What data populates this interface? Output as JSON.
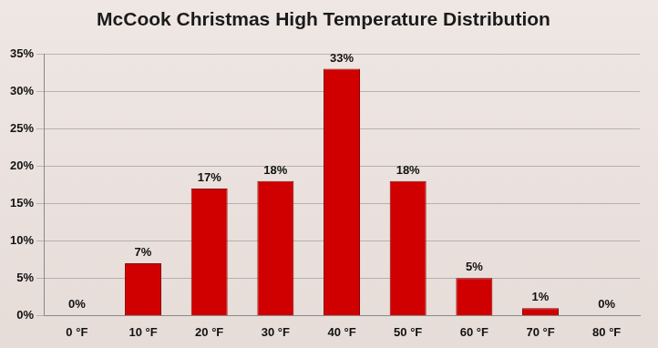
{
  "chart_data": {
    "type": "bar",
    "title": "McCook Christmas High Temperature Distribution",
    "categories": [
      "0 °F",
      "10 °F",
      "20 °F",
      "30 °F",
      "40 °F",
      "50 °F",
      "60 °F",
      "70 °F",
      "80 °F"
    ],
    "values": [
      0,
      7,
      17,
      18,
      33,
      18,
      5,
      1,
      0
    ],
    "value_labels": [
      "0%",
      "7%",
      "17%",
      "18%",
      "33%",
      "18%",
      "5%",
      "1%",
      "0%"
    ],
    "color": "#d00000",
    "ylim": [
      0,
      35
    ],
    "yticks": [
      {
        "value": 0,
        "label": "0%"
      },
      {
        "value": 5,
        "label": "5%"
      },
      {
        "value": 10,
        "label": "10%"
      },
      {
        "value": 15,
        "label": "15%"
      },
      {
        "value": 20,
        "label": "20%"
      },
      {
        "value": 25,
        "label": "25%"
      },
      {
        "value": 30,
        "label": "30%"
      },
      {
        "value": 35,
        "label": "35%"
      }
    ],
    "grid": true,
    "data_labels": true
  }
}
